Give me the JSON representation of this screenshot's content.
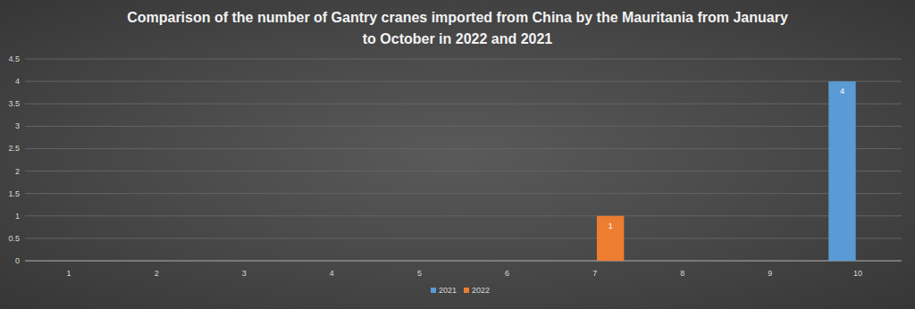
{
  "chart_data": {
    "type": "bar",
    "title": "Comparison of the number of Gantry cranes imported from China by the Mauritania from January to October in 2022 and 2021",
    "categories": [
      "1",
      "2",
      "3",
      "4",
      "5",
      "6",
      "7",
      "8",
      "9",
      "10"
    ],
    "series": [
      {
        "name": "2021",
        "color": "#5b9bd5",
        "values": [
          null,
          null,
          null,
          null,
          null,
          null,
          null,
          null,
          null,
          4
        ]
      },
      {
        "name": "2022",
        "color": "#ed7d31",
        "values": [
          null,
          null,
          null,
          null,
          null,
          null,
          1,
          null,
          null,
          null
        ]
      }
    ],
    "ylim": [
      0,
      4.5
    ],
    "yticks": [
      0,
      0.5,
      1,
      1.5,
      2,
      2.5,
      3,
      3.5,
      4,
      4.5
    ],
    "grid": true,
    "legend": "bottom",
    "data_labels": true
  }
}
